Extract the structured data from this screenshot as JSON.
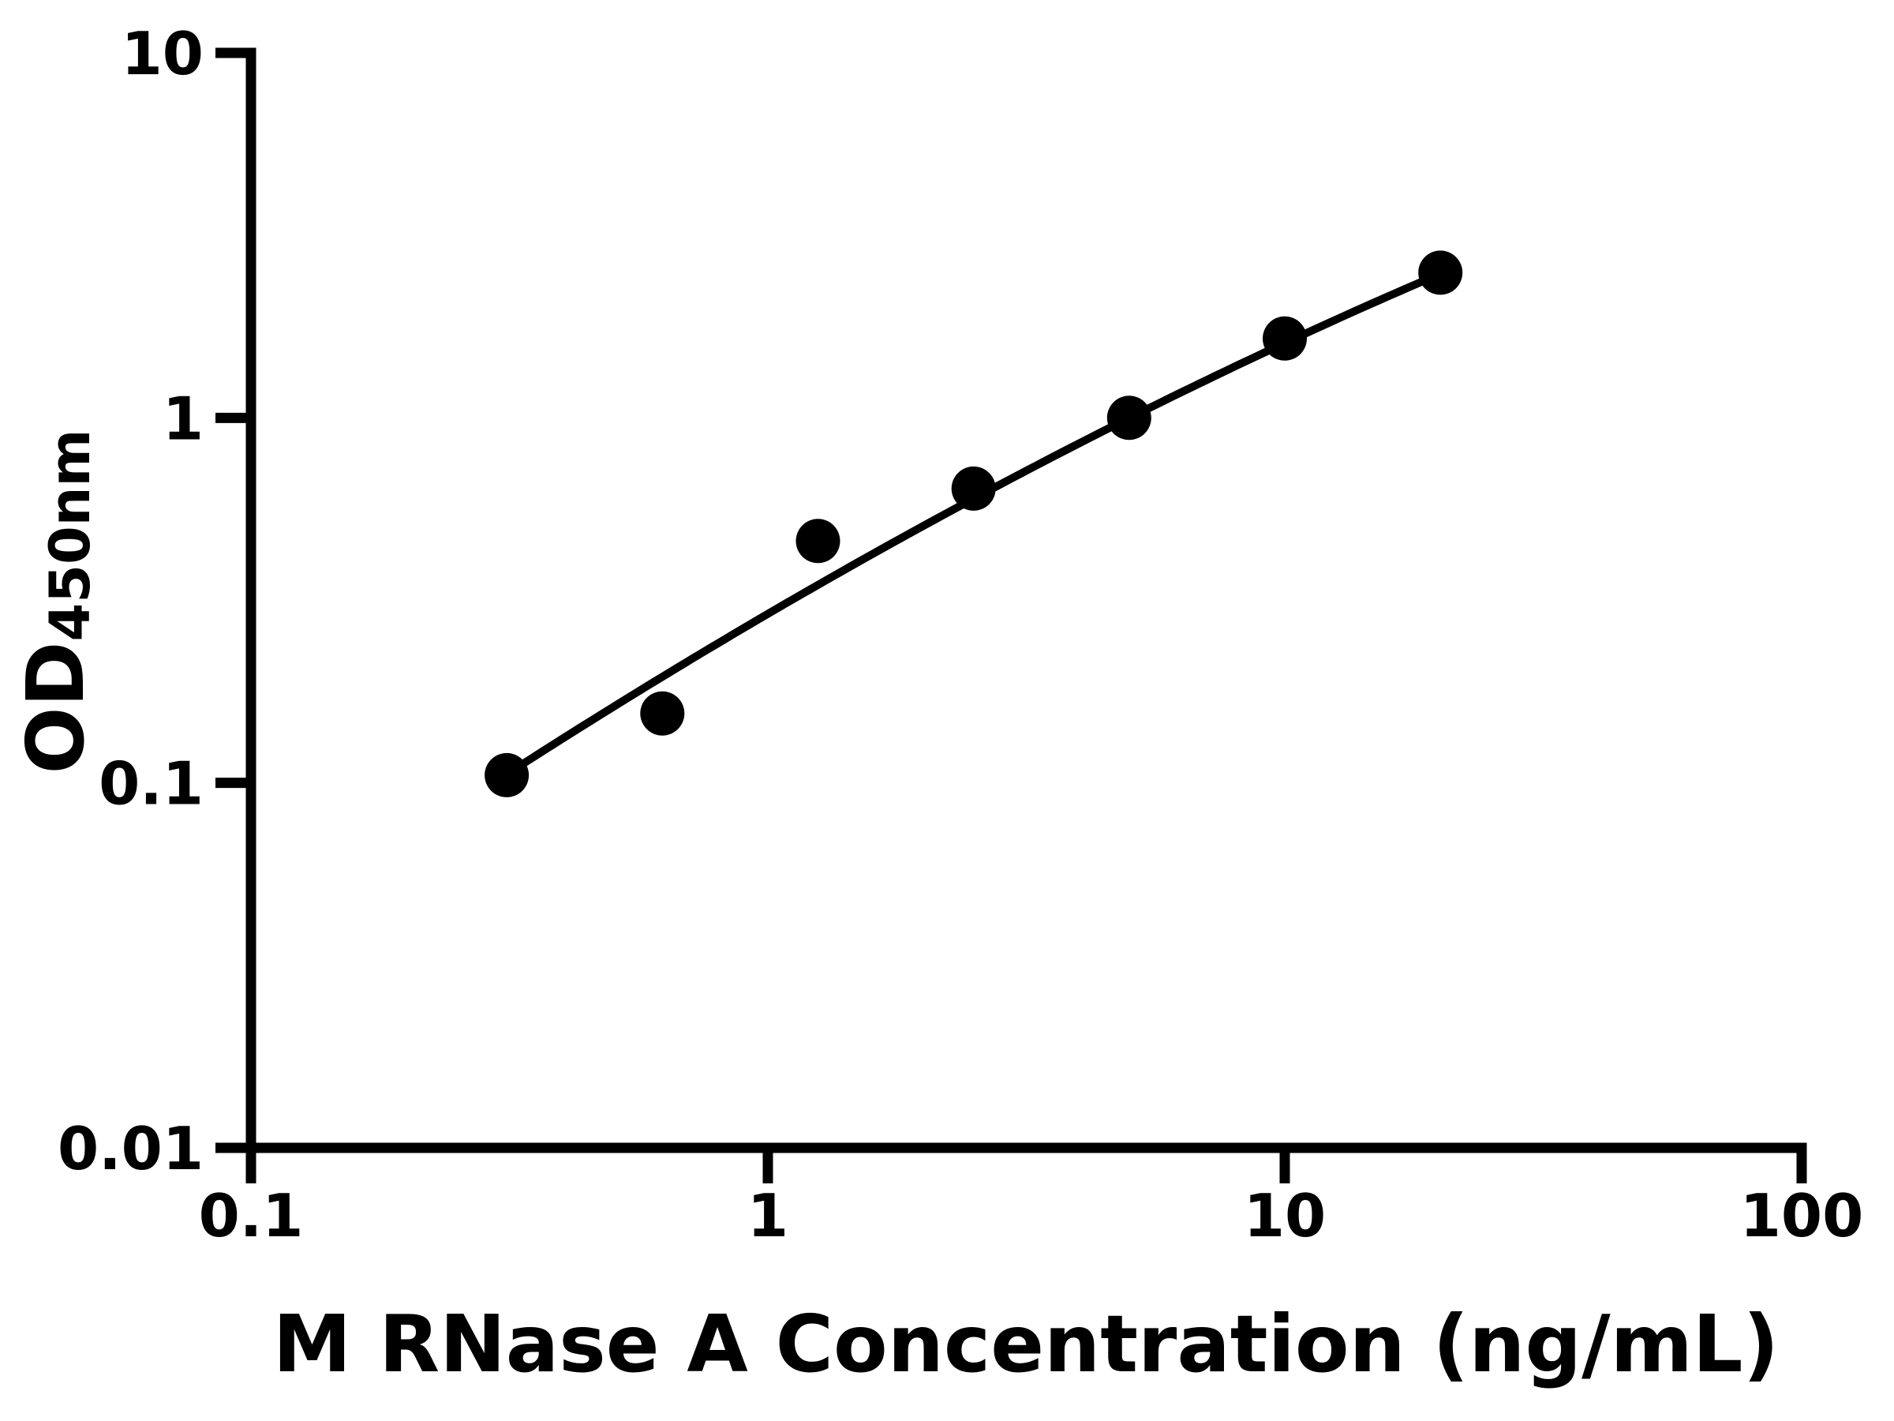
{
  "chart_data": {
    "type": "scatter",
    "title": "",
    "xlabel": "M RNase A Concentration (ng/mL)",
    "ylabel_main": "OD",
    "ylabel_sub": "450nm",
    "x_scale": "log",
    "y_scale": "log",
    "xlim": [
      0.1,
      100
    ],
    "ylim": [
      0.01,
      10
    ],
    "grid": false,
    "legend": null,
    "background_color": "#ffffff",
    "marker_color": "#000000",
    "line_color": "#000000",
    "axis_color": "#000000",
    "x_ticks": [
      {
        "value": 0.1,
        "label": "0.1"
      },
      {
        "value": 1,
        "label": "1"
      },
      {
        "value": 10,
        "label": "10"
      },
      {
        "value": 100,
        "label": "100"
      }
    ],
    "y_ticks": [
      {
        "value": 0.01,
        "label": "0.01"
      },
      {
        "value": 0.1,
        "label": "0.1"
      },
      {
        "value": 1,
        "label": "1"
      },
      {
        "value": 10,
        "label": "10"
      }
    ],
    "points": [
      {
        "x": 0.3125,
        "y": 0.105
      },
      {
        "x": 0.625,
        "y": 0.155
      },
      {
        "x": 1.25,
        "y": 0.46
      },
      {
        "x": 2.5,
        "y": 0.64
      },
      {
        "x": 5,
        "y": 1.0
      },
      {
        "x": 10,
        "y": 1.65
      },
      {
        "x": 20,
        "y": 2.5
      }
    ],
    "fit_curve": {
      "type": "quadratic_loglog",
      "a": -0.537,
      "b": 0.827,
      "c": -0.085,
      "x_start": 0.3125,
      "x_end": 20
    }
  }
}
